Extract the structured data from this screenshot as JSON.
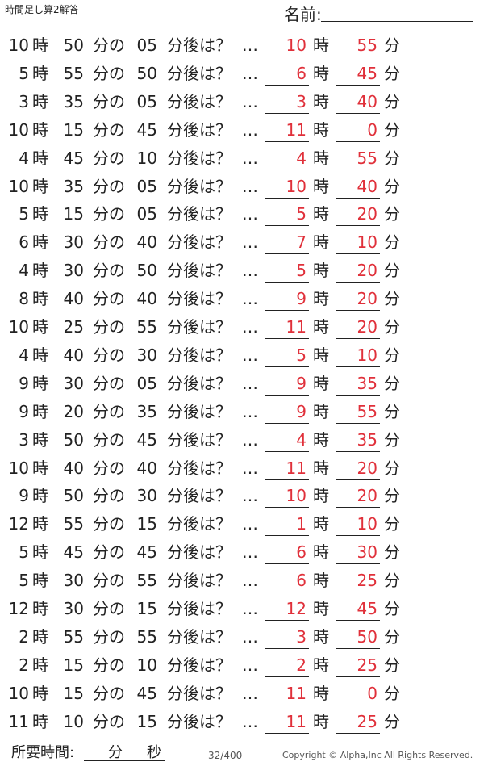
{
  "header": {
    "title": "時間足し算2解答",
    "name_label": "名前:"
  },
  "labels": {
    "hour": "時",
    "minute_of": "分の",
    "after": "分後は？",
    "dots": "…",
    "minute": "分"
  },
  "rows": [
    [
      "10",
      "50",
      "05",
      "10",
      "55"
    ],
    [
      "5",
      "55",
      "50",
      "6",
      "45"
    ],
    [
      "3",
      "35",
      "05",
      "3",
      "40"
    ],
    [
      "10",
      "15",
      "45",
      "11",
      "0"
    ],
    [
      "4",
      "45",
      "10",
      "4",
      "55"
    ],
    [
      "10",
      "35",
      "05",
      "10",
      "40"
    ],
    [
      "5",
      "15",
      "05",
      "5",
      "20"
    ],
    [
      "6",
      "30",
      "40",
      "7",
      "10"
    ],
    [
      "4",
      "30",
      "50",
      "5",
      "20"
    ],
    [
      "8",
      "40",
      "40",
      "9",
      "20"
    ],
    [
      "10",
      "25",
      "55",
      "11",
      "20"
    ],
    [
      "4",
      "40",
      "30",
      "5",
      "10"
    ],
    [
      "9",
      "30",
      "05",
      "9",
      "35"
    ],
    [
      "9",
      "20",
      "35",
      "9",
      "55"
    ],
    [
      "3",
      "50",
      "45",
      "4",
      "35"
    ],
    [
      "10",
      "40",
      "40",
      "11",
      "20"
    ],
    [
      "9",
      "50",
      "30",
      "10",
      "20"
    ],
    [
      "12",
      "55",
      "15",
      "1",
      "10"
    ],
    [
      "5",
      "45",
      "45",
      "6",
      "30"
    ],
    [
      "5",
      "30",
      "55",
      "6",
      "25"
    ],
    [
      "12",
      "30",
      "15",
      "12",
      "45"
    ],
    [
      "2",
      "55",
      "55",
      "3",
      "50"
    ],
    [
      "2",
      "15",
      "10",
      "2",
      "25"
    ],
    [
      "10",
      "15",
      "45",
      "11",
      "0"
    ],
    [
      "11",
      "10",
      "15",
      "11",
      "25"
    ]
  ],
  "footer": {
    "time_label": "所要時間:",
    "min": "分",
    "sec": "秒",
    "page": "32/400",
    "copyright": "Copyright ©  Alpha,Inc All Rights Reserved."
  }
}
